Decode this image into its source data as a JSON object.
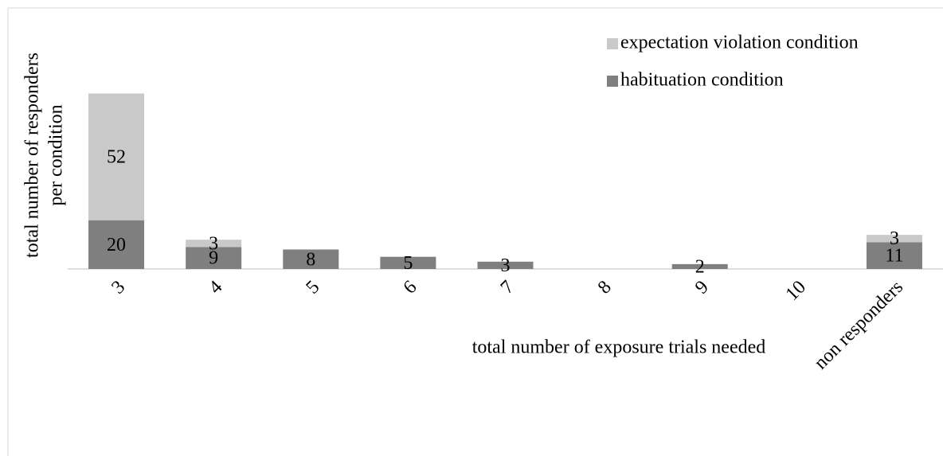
{
  "chart_data": {
    "type": "stacked_bar",
    "xlabel": "total number of exposure trials needed",
    "ylabel": [
      "total number of responders",
      "per condition"
    ],
    "categories": [
      "3",
      "4",
      "5",
      "6",
      "7",
      "8",
      "9",
      "10",
      "non responders"
    ],
    "series": [
      {
        "name": "habituation condition",
        "color": "#7f7f7f",
        "values": [
          20,
          9,
          8,
          5,
          3,
          null,
          2,
          null,
          11
        ]
      },
      {
        "name": "expectation violation condition",
        "color": "#c9c9c9",
        "values": [
          52,
          3,
          null,
          null,
          null,
          null,
          null,
          null,
          3
        ]
      }
    ],
    "ylim": [
      0,
      80
    ],
    "legend": "top-right"
  }
}
